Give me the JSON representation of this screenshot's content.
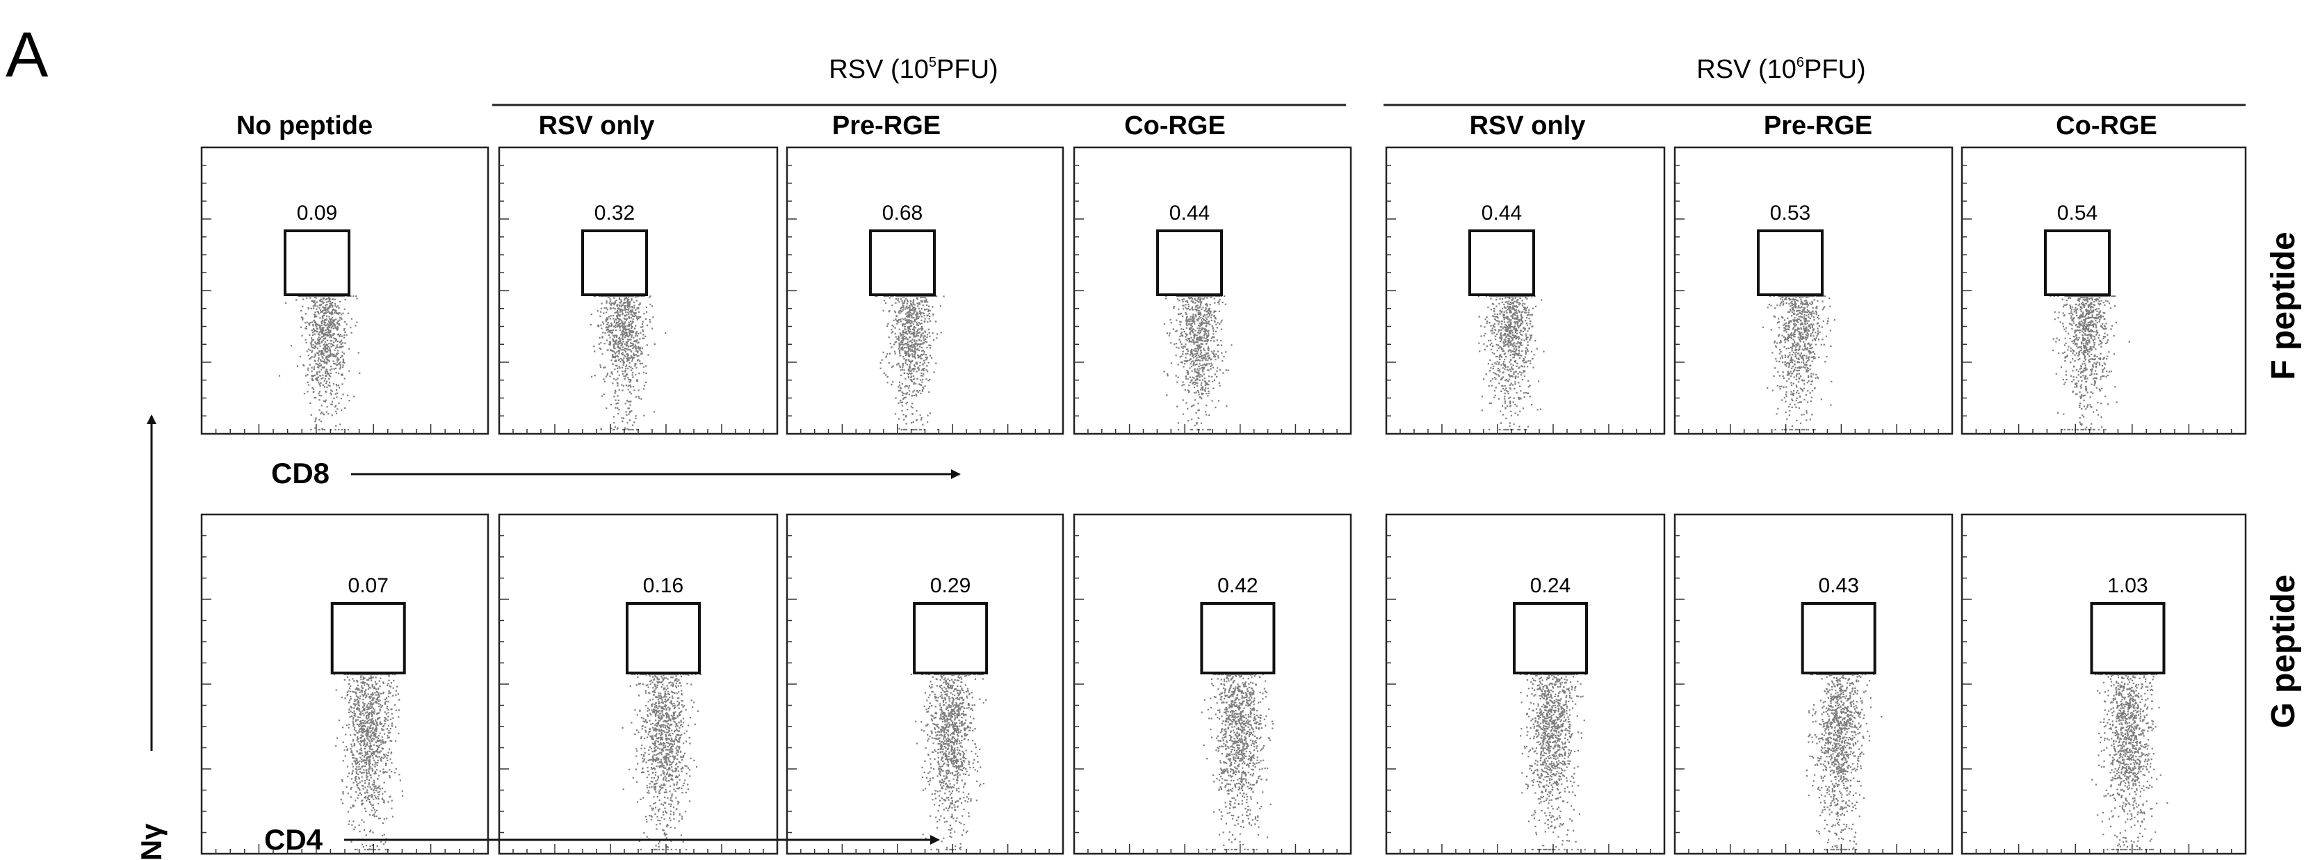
{
  "panel_letter": "A",
  "groups": [
    {
      "prefix": "RSV (10",
      "exp": "5",
      "suffix": "PFU)"
    },
    {
      "prefix": "RSV (10",
      "exp": "6",
      "suffix": "PFU)"
    }
  ],
  "columns": [
    "No peptide",
    "RSV only",
    "Pre-RGE",
    "Co-RGE",
    "RSV only",
    "Pre-RGE",
    "Co-RGE"
  ],
  "rows": [
    "F peptide",
    "G peptide"
  ],
  "y_axis_label": "IFNγ",
  "x_axis_labels": [
    "CD8",
    "CD4"
  ],
  "gate_values": [
    [
      "0.09",
      "0.32",
      "0.68",
      "0.44",
      "0.44",
      "0.53",
      "0.54"
    ],
    [
      "0.07",
      "0.16",
      "0.29",
      "0.42",
      "0.24",
      "0.43",
      "1.03"
    ]
  ],
  "chart_data": {
    "type": "flow-cytometry-dotplot-grid",
    "groups": [
      "RSV (10^5 PFU)",
      "RSV (10^6 PFU)"
    ],
    "columns": [
      "No peptide",
      "RSV only",
      "Pre-RGE",
      "Co-RGE",
      "RSV only",
      "Pre-RGE",
      "Co-RGE"
    ],
    "rows": [
      "F peptide",
      "G peptide"
    ],
    "ylabel": "IFNγ",
    "xlabels": [
      "CD8",
      "CD4"
    ],
    "gate_percent": [
      [
        0.09,
        0.32,
        0.68,
        0.44,
        0.44,
        0.53,
        0.54
      ],
      [
        0.07,
        0.16,
        0.29,
        0.42,
        0.24,
        0.43,
        1.03
      ]
    ]
  }
}
